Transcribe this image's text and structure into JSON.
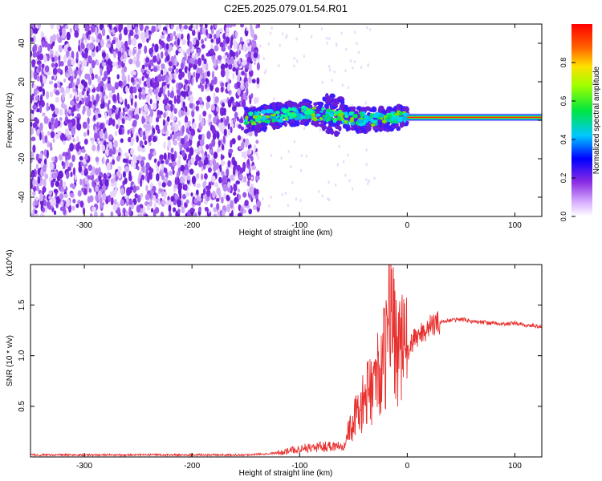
{
  "chart_data": [
    {
      "type": "heatmap",
      "title": "C2E5.2025.079.01.54.R01",
      "xlabel": "Height of straight line (km)",
      "ylabel": "Frequency (Hz)",
      "xlim": [
        -350,
        125
      ],
      "ylim": [
        -50,
        50
      ],
      "xticks": [
        -300,
        -200,
        -100,
        0,
        100
      ],
      "yticks": [
        -40,
        -20,
        0,
        20,
        40
      ],
      "colorbar": {
        "label": "Normalized spectral amplitude",
        "range": [
          0,
          1
        ],
        "ticks": [
          "0.0",
          "0.2",
          "0.4",
          "0.6",
          "0.8"
        ],
        "colormap": "rainbow (white-purple-blue-cyan-green-yellow-red)"
      },
      "regions": [
        {
          "x": [
            -350,
            -150
          ],
          "frequency": [
            -50,
            50
          ],
          "amplitude": "low, scattered noise"
        },
        {
          "x": [
            -150,
            0
          ],
          "frequency": [
            -12,
            12
          ],
          "amplitude": "mid, band around 2 Hz"
        },
        {
          "x": [
            0,
            125
          ],
          "frequency": [
            0,
            3
          ],
          "amplitude": "high, narrow line near 1.5 Hz"
        }
      ],
      "grid": false
    },
    {
      "type": "line",
      "xlabel": "Height of straight line (km)",
      "ylabel": "SNR (10 * v/v)",
      "y_multiplier": "(x10^4)",
      "xlim": [
        -350,
        125
      ],
      "ylim": [
        0,
        1.9
      ],
      "xticks": [
        -300,
        -200,
        -100,
        0,
        100
      ],
      "yticks": [
        "0.5",
        "1.0",
        "1.5"
      ],
      "color": "#e8312f",
      "series": [
        {
          "x": [
            -350,
            -250,
            -150,
            -120,
            -100,
            -80,
            -60,
            -50,
            -40,
            -30,
            -20,
            -15,
            -10,
            0,
            10,
            20,
            30,
            40,
            50,
            60,
            70,
            80,
            90,
            100,
            110,
            125
          ],
          "values": [
            0.02,
            0.02,
            0.02,
            0.04,
            0.08,
            0.1,
            0.12,
            0.35,
            0.55,
            0.75,
            1.0,
            1.55,
            1.1,
            1.05,
            1.2,
            1.28,
            1.33,
            1.35,
            1.36,
            1.34,
            1.33,
            1.32,
            1.31,
            1.32,
            1.3,
            1.29
          ]
        }
      ],
      "grid": false
    }
  ]
}
